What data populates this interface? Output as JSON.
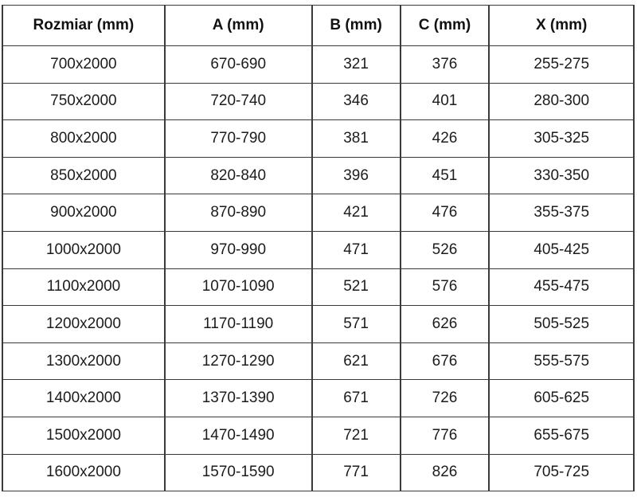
{
  "table": {
    "headers": [
      "Rozmiar (mm)",
      "A (mm)",
      "B (mm)",
      "C (mm)",
      "X (mm)"
    ],
    "rows": [
      [
        "700x2000",
        "670-690",
        "321",
        "376",
        "255-275"
      ],
      [
        "750x2000",
        "720-740",
        "346",
        "401",
        "280-300"
      ],
      [
        "800x2000",
        "770-790",
        "381",
        "426",
        "305-325"
      ],
      [
        "850x2000",
        "820-840",
        "396",
        "451",
        "330-350"
      ],
      [
        "900x2000",
        "870-890",
        "421",
        "476",
        "355-375"
      ],
      [
        "1000x2000",
        "970-990",
        "471",
        "526",
        "405-425"
      ],
      [
        "1100x2000",
        "1070-1090",
        "521",
        "576",
        "455-475"
      ],
      [
        "1200x2000",
        "1170-1190",
        "571",
        "626",
        "505-525"
      ],
      [
        "1300x2000",
        "1270-1290",
        "621",
        "676",
        "555-575"
      ],
      [
        "1400x2000",
        "1370-1390",
        "671",
        "726",
        "605-625"
      ],
      [
        "1500x2000",
        "1470-1490",
        "721",
        "776",
        "655-675"
      ],
      [
        "1600x2000",
        "1570-1590",
        "771",
        "826",
        "705-725"
      ]
    ],
    "colors": {
      "border": "#3a3a3a",
      "text": "#1c1c1c",
      "background": "#ffffff"
    }
  }
}
